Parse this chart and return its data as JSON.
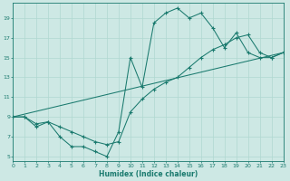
{
  "xlabel": "Humidex (Indice chaleur)",
  "bg_color": "#cde8e4",
  "grid_color": "#b0d8d0",
  "line_color": "#1a7a6e",
  "xlim": [
    0,
    23
  ],
  "ylim": [
    4.5,
    20.5
  ],
  "xticks": [
    0,
    1,
    2,
    3,
    4,
    5,
    6,
    7,
    8,
    9,
    10,
    11,
    12,
    13,
    14,
    15,
    16,
    17,
    18,
    19,
    20,
    21,
    22,
    23
  ],
  "yticks": [
    5,
    7,
    9,
    11,
    13,
    15,
    17,
    19
  ],
  "line1_x": [
    0,
    1,
    2,
    3,
    4,
    5,
    6,
    7,
    8,
    9,
    10,
    11,
    12,
    13,
    14,
    15,
    16,
    17,
    18,
    19,
    20,
    21,
    22,
    23
  ],
  "line1_y": [
    9,
    9,
    8,
    8.5,
    7,
    6,
    6,
    5.5,
    5,
    7.5,
    15,
    12,
    18.5,
    19.5,
    20,
    19,
    19.5,
    18,
    16,
    17.5,
    15.5,
    15,
    15,
    15.5
  ],
  "line2_x": [
    0,
    1,
    2,
    3,
    4,
    5,
    6,
    7,
    8,
    9,
    10,
    11,
    12,
    13,
    14,
    15,
    16,
    17,
    18,
    19,
    20,
    21,
    22,
    23
  ],
  "line2_y": [
    9,
    9,
    8.3,
    8.5,
    8,
    7.5,
    7,
    6.5,
    6.2,
    6.5,
    9.5,
    10.8,
    11.8,
    12.5,
    13,
    14,
    15,
    15.8,
    16.3,
    17,
    17.3,
    15.5,
    15,
    15.5
  ],
  "line3_x": [
    0,
    23
  ],
  "line3_y": [
    9,
    15.5
  ]
}
